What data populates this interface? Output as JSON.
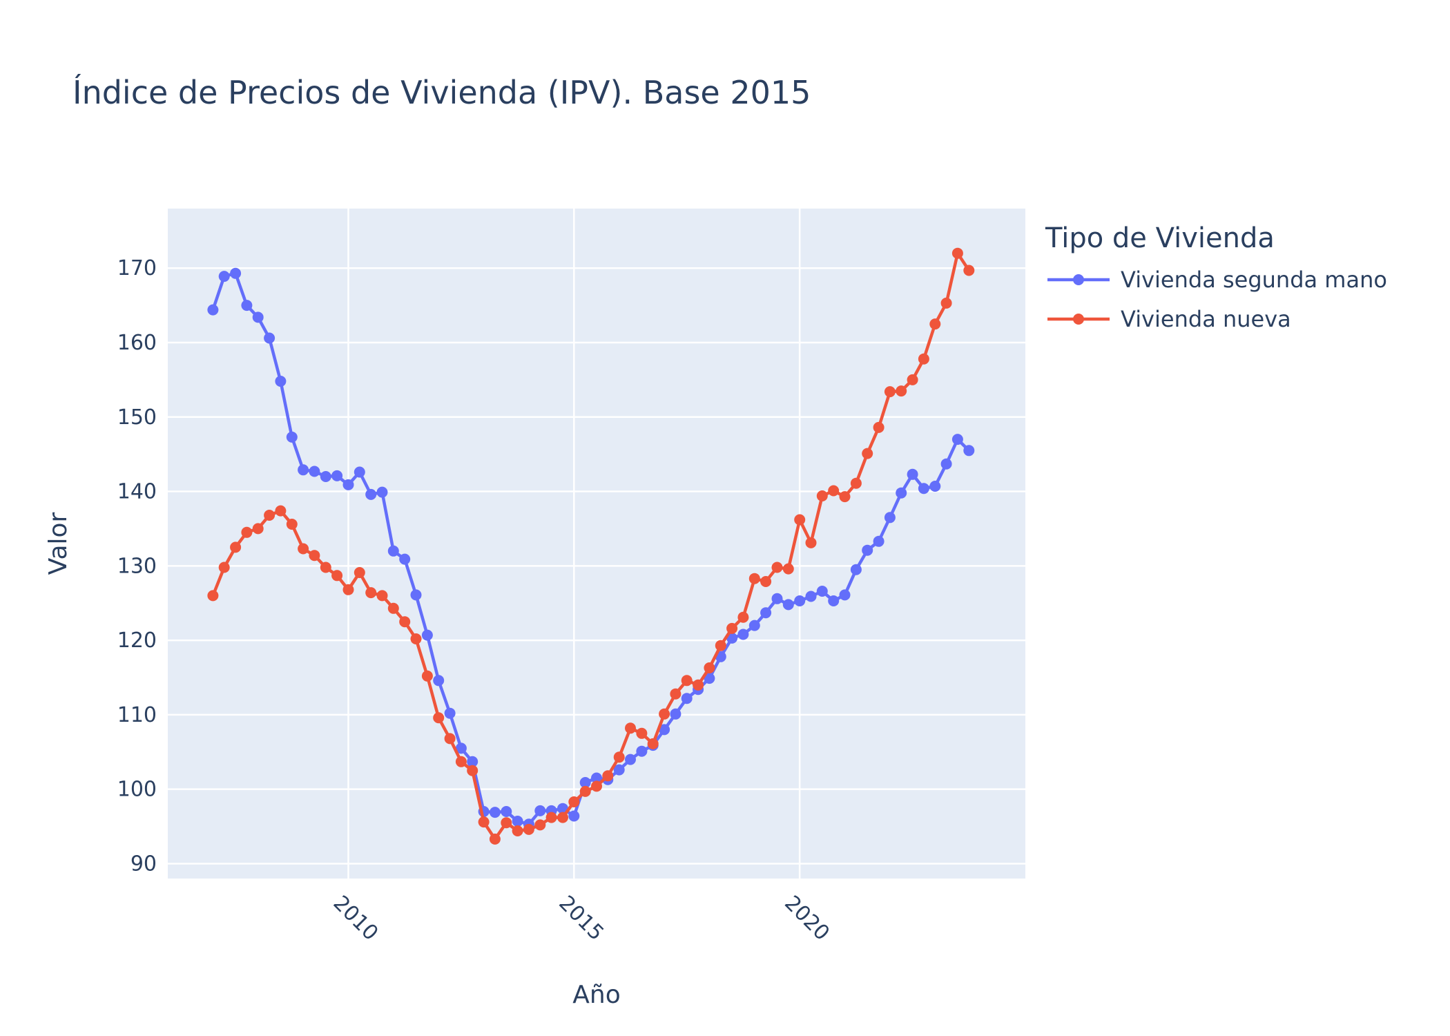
{
  "chart_data": {
    "type": "line",
    "title": "Índice de Precios de Vivienda (IPV). Base 2015",
    "xlabel": "Año",
    "ylabel": "Valor",
    "xlim": [
      2006.0,
      2025.0
    ],
    "ylim": [
      88,
      178
    ],
    "x_ticks": [
      2010,
      2015,
      2020
    ],
    "y_ticks": [
      90,
      100,
      110,
      120,
      130,
      140,
      150,
      160,
      170
    ],
    "grid": true,
    "legend": {
      "title": "Tipo de Vivienda",
      "placement": "top-right"
    },
    "x": [
      2007.0,
      2007.25,
      2007.5,
      2007.75,
      2008.0,
      2008.25,
      2008.5,
      2008.75,
      2009.0,
      2009.25,
      2009.5,
      2009.75,
      2010.0,
      2010.25,
      2010.5,
      2010.75,
      2011.0,
      2011.25,
      2011.5,
      2011.75,
      2012.0,
      2012.25,
      2012.5,
      2012.75,
      2013.0,
      2013.25,
      2013.5,
      2013.75,
      2014.0,
      2014.25,
      2014.5,
      2014.75,
      2015.0,
      2015.25,
      2015.5,
      2015.75,
      2016.0,
      2016.25,
      2016.5,
      2016.75,
      2017.0,
      2017.25,
      2017.5,
      2017.75,
      2018.0,
      2018.25,
      2018.5,
      2018.75,
      2019.0,
      2019.25,
      2019.5,
      2019.75,
      2020.0,
      2020.25,
      2020.5,
      2020.75,
      2021.0,
      2021.25,
      2021.5,
      2021.75,
      2022.0,
      2022.25,
      2022.5,
      2022.75,
      2023.0,
      2023.25,
      2023.5,
      2023.75
    ],
    "series": [
      {
        "name": "Vivienda segunda mano",
        "color": "#636efa",
        "values": [
          164.4,
          168.9,
          169.3,
          165.0,
          163.4,
          160.6,
          154.8,
          147.3,
          142.9,
          142.7,
          142.0,
          142.1,
          140.9,
          142.6,
          139.6,
          139.9,
          132.0,
          130.9,
          126.1,
          120.7,
          114.6,
          110.2,
          105.5,
          103.7,
          97.0,
          96.9,
          97.0,
          95.7,
          95.3,
          97.1,
          97.1,
          97.4,
          96.4,
          100.9,
          101.5,
          101.3,
          102.6,
          104.0,
          105.1,
          105.9,
          108.0,
          110.1,
          112.2,
          113.4,
          114.9,
          117.8,
          120.3,
          120.8,
          122.0,
          123.7,
          125.6,
          124.8,
          125.3,
          125.9,
          126.6,
          125.3,
          126.1,
          129.5,
          132.1,
          133.3,
          136.5,
          139.8,
          142.3,
          140.4,
          140.7,
          143.7,
          147.0,
          145.5
        ]
      },
      {
        "name": "Vivienda nueva",
        "color": "#ef553b",
        "values": [
          126.0,
          129.8,
          132.5,
          134.5,
          135.0,
          136.8,
          137.4,
          135.6,
          132.3,
          131.4,
          129.8,
          128.7,
          126.8,
          129.1,
          126.4,
          126.0,
          124.3,
          122.5,
          120.2,
          115.2,
          109.6,
          106.8,
          103.7,
          102.5,
          95.6,
          93.3,
          95.5,
          94.4,
          94.6,
          95.2,
          96.2,
          96.2,
          98.3,
          99.7,
          100.4,
          101.8,
          104.3,
          108.2,
          107.5,
          106.1,
          110.1,
          112.8,
          114.6,
          114.0,
          116.3,
          119.3,
          121.6,
          123.1,
          128.3,
          127.9,
          129.8,
          129.6,
          136.2,
          133.1,
          139.4,
          140.1,
          139.3,
          141.1,
          145.1,
          148.6,
          153.4,
          153.5,
          155.0,
          157.8,
          162.5,
          165.3,
          172.0,
          169.7
        ]
      }
    ]
  }
}
